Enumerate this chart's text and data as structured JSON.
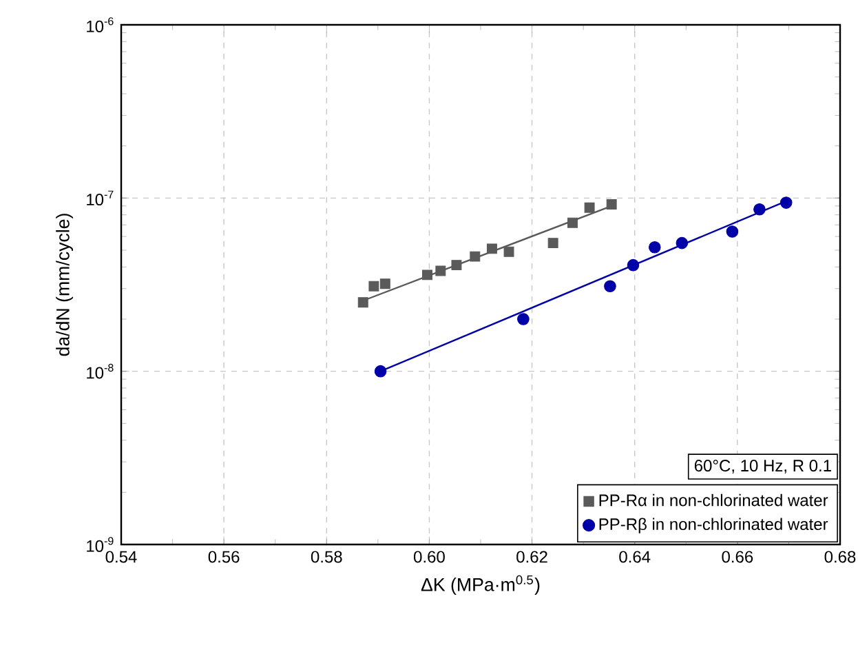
{
  "chart_data": {
    "type": "scatter",
    "xlabel": "ΔK (MPa·m$^{0.5}$)",
    "ylabel": "da/dN (mm/cycle)",
    "xlim": [
      0.54,
      0.68
    ],
    "xticks": [
      0.54,
      0.56,
      0.58,
      {
        "value": 0.6,
        "label": "0.60"
      },
      0.62,
      0.64,
      0.66,
      0.68
    ],
    "ylim": [
      1e-09,
      1e-06
    ],
    "yticks": [
      {
        "value": 1e-09,
        "label": "10$^{-9}$"
      },
      {
        "value": 1e-08,
        "label": "10$^{-8}$"
      },
      {
        "value": 1e-07,
        "label": "10$^{-7}$"
      },
      {
        "value": 1e-06,
        "label": "10$^{-6}$"
      }
    ],
    "log": "y",
    "grid": true,
    "legend": "bottom right",
    "annotations": [
      "60°C, 10 Hz, R 0.1"
    ],
    "series": [
      {
        "name": "PP-Rα in non-chlorinated water",
        "marker": "square",
        "color": "#5a5a5a",
        "x": [
          0.5871,
          0.5892,
          0.5914,
          0.5996,
          0.6022,
          0.6053,
          0.6089,
          0.6122,
          0.6155,
          0.6241,
          0.6279,
          0.6312,
          0.6355
        ],
        "values": [
          2.5e-08,
          3.1e-08,
          3.2e-08,
          3.6e-08,
          3.8e-08,
          4.1e-08,
          4.6e-08,
          5.1e-08,
          4.9e-08,
          5.5e-08,
          7.2e-08,
          8.8e-08,
          9.2e-08
        ]
      },
      {
        "name": "PP-Rβ in non-chlorinated water",
        "marker": "circle",
        "color": "#0000a8",
        "x": [
          0.5905,
          0.6183,
          0.6352,
          0.6397,
          0.6439,
          0.6492,
          0.659,
          0.6643,
          0.6695
        ],
        "values": [
          1e-08,
          2e-08,
          3.1e-08,
          4.1e-08,
          5.2e-08,
          5.5e-08,
          6.4e-08,
          8.6e-08,
          9.4e-08
        ]
      },
      {
        "type": "line",
        "color": "#5a5a5a",
        "x": [
          0.587,
          0.6355
        ],
        "values": [
          2.55e-08,
          9e-08
        ]
      },
      {
        "type": "line",
        "color": "#0000a8",
        "x": [
          0.5905,
          0.6695
        ],
        "values": [
          1e-08,
          9.6e-08
        ]
      }
    ]
  }
}
